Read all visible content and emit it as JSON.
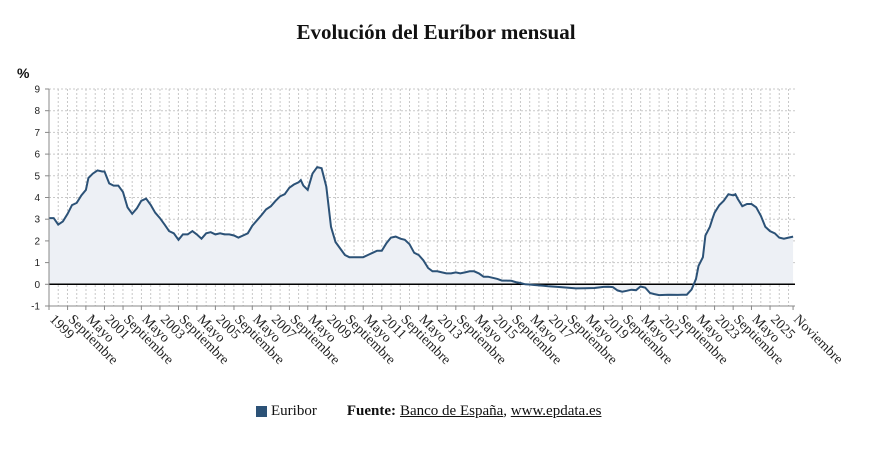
{
  "colors": {
    "line": "#2c5277",
    "area": "#edf0f5",
    "grid": "#c8c8c8",
    "zero_line": "#000000"
  },
  "chart_data": {
    "type": "area",
    "title": "Evolución del Euríbor mensual",
    "ylabel": "%",
    "ylim": [
      -1,
      9
    ],
    "yticks": [
      -1,
      0,
      1,
      2,
      3,
      4,
      5,
      6,
      7,
      8,
      9
    ],
    "xlim": [
      1999.0,
      2025.9
    ],
    "grid": true,
    "legend_position": "bottom-center",
    "xticks": [
      {
        "label": "1999",
        "x": 1999.0
      },
      {
        "label": "Septiembre",
        "x": 1999.67
      },
      {
        "label": "Mayo",
        "x": 2000.33
      },
      {
        "label": "2001",
        "x": 2001.0
      },
      {
        "label": "Septiembre",
        "x": 2001.67
      },
      {
        "label": "Mayo",
        "x": 2002.33
      },
      {
        "label": "2003",
        "x": 2003.0
      },
      {
        "label": "Septiembre",
        "x": 2003.67
      },
      {
        "label": "Mayo",
        "x": 2004.33
      },
      {
        "label": "2005",
        "x": 2005.0
      },
      {
        "label": "Septiembre",
        "x": 2005.67
      },
      {
        "label": "Mayo",
        "x": 2006.33
      },
      {
        "label": "2007",
        "x": 2007.0
      },
      {
        "label": "Septiembre",
        "x": 2007.67
      },
      {
        "label": "Mayo",
        "x": 2008.33
      },
      {
        "label": "2009",
        "x": 2009.0
      },
      {
        "label": "Septiembre",
        "x": 2009.67
      },
      {
        "label": "Mayo",
        "x": 2010.33
      },
      {
        "label": "2011",
        "x": 2011.0
      },
      {
        "label": "Septiembre",
        "x": 2011.67
      },
      {
        "label": "Mayo",
        "x": 2012.33
      },
      {
        "label": "2013",
        "x": 2013.0
      },
      {
        "label": "Septiembre",
        "x": 2013.67
      },
      {
        "label": "Mayo",
        "x": 2014.33
      },
      {
        "label": "2015",
        "x": 2015.0
      },
      {
        "label": "Septiembre",
        "x": 2015.67
      },
      {
        "label": "Mayo",
        "x": 2016.33
      },
      {
        "label": "2017",
        "x": 2017.0
      },
      {
        "label": "Septiembre",
        "x": 2017.67
      },
      {
        "label": "Mayo",
        "x": 2018.33
      },
      {
        "label": "2019",
        "x": 2019.0
      },
      {
        "label": "Septiembre",
        "x": 2019.67
      },
      {
        "label": "Mayo",
        "x": 2020.33
      },
      {
        "label": "2021",
        "x": 2021.0
      },
      {
        "label": "Septiembre",
        "x": 2021.67
      },
      {
        "label": "Mayo",
        "x": 2022.33
      },
      {
        "label": "2023",
        "x": 2023.0
      },
      {
        "label": "Septiembre",
        "x": 2023.67
      },
      {
        "label": "Mayo",
        "x": 2024.33
      },
      {
        "label": "2025",
        "x": 2025.0
      },
      {
        "label": "Noviembre",
        "x": 2025.83
      }
    ],
    "series": [
      {
        "name": "Euribor",
        "points": [
          [
            1999.0,
            3.05
          ],
          [
            1999.17,
            3.05
          ],
          [
            1999.33,
            2.75
          ],
          [
            1999.5,
            2.9
          ],
          [
            1999.67,
            3.25
          ],
          [
            1999.83,
            3.65
          ],
          [
            2000.0,
            3.75
          ],
          [
            2000.17,
            4.1
          ],
          [
            2000.33,
            4.35
          ],
          [
            2000.42,
            4.9
          ],
          [
            2000.58,
            5.1
          ],
          [
            2000.75,
            5.25
          ],
          [
            2000.92,
            5.2
          ],
          [
            2001.0,
            5.2
          ],
          [
            2001.17,
            4.65
          ],
          [
            2001.33,
            4.55
          ],
          [
            2001.5,
            4.55
          ],
          [
            2001.67,
            4.25
          ],
          [
            2001.83,
            3.55
          ],
          [
            2002.0,
            3.25
          ],
          [
            2002.17,
            3.5
          ],
          [
            2002.33,
            3.85
          ],
          [
            2002.5,
            3.95
          ],
          [
            2002.67,
            3.65
          ],
          [
            2002.83,
            3.3
          ],
          [
            2003.0,
            3.05
          ],
          [
            2003.17,
            2.75
          ],
          [
            2003.33,
            2.45
          ],
          [
            2003.5,
            2.35
          ],
          [
            2003.67,
            2.05
          ],
          [
            2003.83,
            2.3
          ],
          [
            2004.0,
            2.3
          ],
          [
            2004.17,
            2.45
          ],
          [
            2004.33,
            2.3
          ],
          [
            2004.5,
            2.1
          ],
          [
            2004.67,
            2.35
          ],
          [
            2004.83,
            2.4
          ],
          [
            2005.0,
            2.3
          ],
          [
            2005.17,
            2.35
          ],
          [
            2005.33,
            2.3
          ],
          [
            2005.5,
            2.3
          ],
          [
            2005.67,
            2.25
          ],
          [
            2005.83,
            2.15
          ],
          [
            2006.0,
            2.25
          ],
          [
            2006.17,
            2.35
          ],
          [
            2006.33,
            2.7
          ],
          [
            2006.5,
            2.95
          ],
          [
            2006.67,
            3.2
          ],
          [
            2006.83,
            3.45
          ],
          [
            2007.0,
            3.6
          ],
          [
            2007.17,
            3.85
          ],
          [
            2007.33,
            4.05
          ],
          [
            2007.5,
            4.15
          ],
          [
            2007.67,
            4.45
          ],
          [
            2007.83,
            4.6
          ],
          [
            2008.0,
            4.7
          ],
          [
            2008.08,
            4.8
          ],
          [
            2008.17,
            4.55
          ],
          [
            2008.33,
            4.35
          ],
          [
            2008.5,
            5.1
          ],
          [
            2008.67,
            5.4
          ],
          [
            2008.83,
            5.35
          ],
          [
            2009.0,
            4.5
          ],
          [
            2009.17,
            2.65
          ],
          [
            2009.33,
            1.95
          ],
          [
            2009.5,
            1.65
          ],
          [
            2009.67,
            1.35
          ],
          [
            2009.83,
            1.25
          ],
          [
            2010.0,
            1.25
          ],
          [
            2010.17,
            1.25
          ],
          [
            2010.33,
            1.25
          ],
          [
            2010.5,
            1.35
          ],
          [
            2010.67,
            1.45
          ],
          [
            2010.83,
            1.55
          ],
          [
            2011.0,
            1.55
          ],
          [
            2011.17,
            1.9
          ],
          [
            2011.33,
            2.15
          ],
          [
            2011.5,
            2.2
          ],
          [
            2011.67,
            2.1
          ],
          [
            2011.83,
            2.05
          ],
          [
            2012.0,
            1.85
          ],
          [
            2012.17,
            1.45
          ],
          [
            2012.33,
            1.35
          ],
          [
            2012.5,
            1.1
          ],
          [
            2012.67,
            0.75
          ],
          [
            2012.83,
            0.6
          ],
          [
            2013.0,
            0.6
          ],
          [
            2013.17,
            0.55
          ],
          [
            2013.33,
            0.5
          ],
          [
            2013.5,
            0.5
          ],
          [
            2013.67,
            0.55
          ],
          [
            2013.83,
            0.5
          ],
          [
            2014.0,
            0.55
          ],
          [
            2014.17,
            0.6
          ],
          [
            2014.33,
            0.6
          ],
          [
            2014.5,
            0.5
          ],
          [
            2014.67,
            0.35
          ],
          [
            2014.83,
            0.35
          ],
          [
            2015.0,
            0.3
          ],
          [
            2015.17,
            0.25
          ],
          [
            2015.33,
            0.17
          ],
          [
            2015.5,
            0.17
          ],
          [
            2015.67,
            0.16
          ],
          [
            2015.83,
            0.1
          ],
          [
            2016.0,
            0.06
          ],
          [
            2016.17,
            0.0
          ],
          [
            2016.33,
            -0.01
          ],
          [
            2016.5,
            -0.03
          ],
          [
            2016.67,
            -0.05
          ],
          [
            2016.83,
            -0.07
          ],
          [
            2017.0,
            -0.09
          ],
          [
            2017.33,
            -0.12
          ],
          [
            2017.67,
            -0.15
          ],
          [
            2018.0,
            -0.19
          ],
          [
            2018.33,
            -0.18
          ],
          [
            2018.67,
            -0.17
          ],
          [
            2019.0,
            -0.12
          ],
          [
            2019.17,
            -0.11
          ],
          [
            2019.33,
            -0.13
          ],
          [
            2019.5,
            -0.28
          ],
          [
            2019.67,
            -0.34
          ],
          [
            2019.83,
            -0.3
          ],
          [
            2020.0,
            -0.25
          ],
          [
            2020.17,
            -0.27
          ],
          [
            2020.33,
            -0.1
          ],
          [
            2020.5,
            -0.15
          ],
          [
            2020.67,
            -0.4
          ],
          [
            2020.83,
            -0.45
          ],
          [
            2021.0,
            -0.5
          ],
          [
            2021.33,
            -0.48
          ],
          [
            2021.67,
            -0.49
          ],
          [
            2021.83,
            -0.48
          ],
          [
            2022.0,
            -0.48
          ],
          [
            2022.17,
            -0.24
          ],
          [
            2022.33,
            0.25
          ],
          [
            2022.42,
            0.85
          ],
          [
            2022.58,
            1.25
          ],
          [
            2022.67,
            2.25
          ],
          [
            2022.83,
            2.65
          ],
          [
            2022.92,
            3.02
          ],
          [
            2023.0,
            3.3
          ],
          [
            2023.17,
            3.65
          ],
          [
            2023.33,
            3.85
          ],
          [
            2023.5,
            4.15
          ],
          [
            2023.67,
            4.1
          ],
          [
            2023.75,
            4.15
          ],
          [
            2023.83,
            3.95
          ],
          [
            2024.0,
            3.6
          ],
          [
            2024.17,
            3.7
          ],
          [
            2024.33,
            3.7
          ],
          [
            2024.5,
            3.55
          ],
          [
            2024.67,
            3.15
          ],
          [
            2024.83,
            2.65
          ],
          [
            2025.0,
            2.45
          ],
          [
            2025.17,
            2.35
          ],
          [
            2025.33,
            2.15
          ],
          [
            2025.5,
            2.1
          ],
          [
            2025.67,
            2.15
          ],
          [
            2025.83,
            2.2
          ]
        ]
      }
    ]
  },
  "legend": {
    "series_label": "Euribor"
  },
  "source": {
    "label": "Fuente:",
    "name": "Banco de España",
    "separator": ",",
    "url_text": "www.epdata.es"
  }
}
